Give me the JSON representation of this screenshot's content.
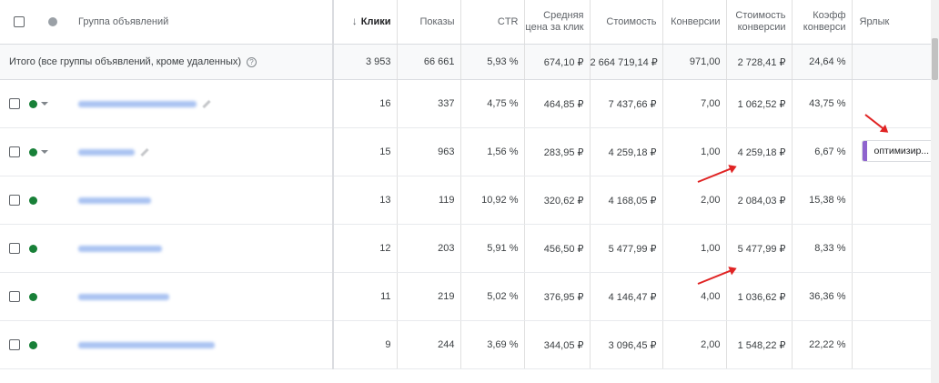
{
  "headers": {
    "group": "Группа объявлений",
    "clicks": "Клики",
    "impressions": "Показы",
    "ctr": "CTR",
    "avg_cpc": "Средняя цена за клик",
    "cost": "Стоимость",
    "conversions": "Конверсии",
    "cost_per_conv": "Стоимость конверсии",
    "conv_rate": "Коэфф конверси",
    "label": "Ярлык"
  },
  "total": {
    "label": "Итого (все группы объявлений, кроме удаленных)",
    "clicks": "3 953",
    "impressions": "66 661",
    "ctr": "5,93 %",
    "avg_cpc": "674,10 ₽",
    "cost": "2 664 719,14 ₽",
    "conversions": "971,00",
    "cost_per_conv": "2 728,41 ₽",
    "conv_rate": "24,64 %"
  },
  "rows": [
    {
      "clicks": "16",
      "impressions": "337",
      "ctr": "4,75 %",
      "avg_cpc": "464,85 ₽",
      "cost": "7 437,66 ₽",
      "conversions": "7,00",
      "cost_per_conv": "1 062,52 ₽",
      "conv_rate": "43,75 %",
      "label": ""
    },
    {
      "clicks": "15",
      "impressions": "963",
      "ctr": "1,56 %",
      "avg_cpc": "283,95 ₽",
      "cost": "4 259,18 ₽",
      "conversions": "1,00",
      "cost_per_conv": "4 259,18 ₽",
      "conv_rate": "6,67 %",
      "label": "оптимизир..."
    },
    {
      "clicks": "13",
      "impressions": "119",
      "ctr": "10,92 %",
      "avg_cpc": "320,62 ₽",
      "cost": "4 168,05 ₽",
      "conversions": "2,00",
      "cost_per_conv": "2 084,03 ₽",
      "conv_rate": "15,38 %",
      "label": ""
    },
    {
      "clicks": "12",
      "impressions": "203",
      "ctr": "5,91 %",
      "avg_cpc": "456,50 ₽",
      "cost": "5 477,99 ₽",
      "conversions": "1,00",
      "cost_per_conv": "5 477,99 ₽",
      "conv_rate": "8,33 %",
      "label": ""
    },
    {
      "clicks": "11",
      "impressions": "219",
      "ctr": "5,02 %",
      "avg_cpc": "376,95 ₽",
      "cost": "4 146,47 ₽",
      "conversions": "4,00",
      "cost_per_conv": "1 036,62 ₽",
      "conv_rate": "36,36 %",
      "label": ""
    },
    {
      "clicks": "9",
      "impressions": "244",
      "ctr": "3,69 %",
      "avg_cpc": "344,05 ₽",
      "cost": "3 096,45 ₽",
      "conversions": "2,00",
      "cost_per_conv": "1 548,22 ₽",
      "conv_rate": "22,22 %",
      "label": ""
    }
  ]
}
